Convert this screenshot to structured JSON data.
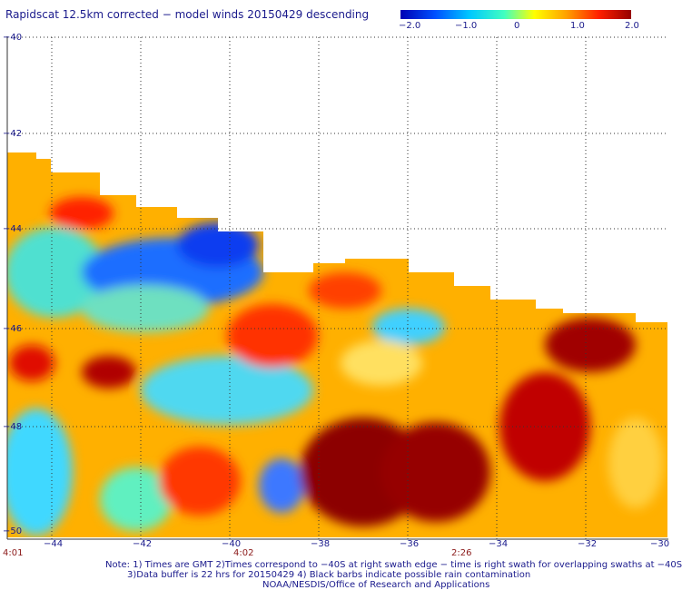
{
  "title": "Rapidscat 12.5km corrected − model winds 20150429 descending",
  "colorbar": {
    "ticks": [
      "−2.0",
      "−1.0",
      "0",
      "1.0",
      "2.0"
    ],
    "range": [
      -2.0,
      2.0
    ],
    "colors": [
      "#0000b4",
      "#0050ff",
      "#00c8ff",
      "#40ffc0",
      "#ffff00",
      "#ffa000",
      "#ff2000",
      "#960000"
    ]
  },
  "latitude_labels": [
    "−40",
    "−42",
    "−44",
    "−46",
    "−48",
    "−50"
  ],
  "longitude_labels": [
    "−44",
    "−42",
    "−40",
    "−38",
    "−36",
    "−34",
    "−32",
    "−30"
  ],
  "time_labels": [
    "4:01",
    "4:02",
    "2:26"
  ],
  "notes": [
    "Note: 1) Times are GMT 2)Times correspond to −40S at right swath edge − time is right swath for overlapping swaths at −40S",
    "3)Data buffer is 22 hrs for 20150429 4) Black barbs indicate possible rain contamination",
    "NOAA/NESDIS/Office of Research and Applications"
  ],
  "colors": {
    "text": "#1a1a8c",
    "time_text": "#8b1a1a",
    "grid": "#333333"
  }
}
